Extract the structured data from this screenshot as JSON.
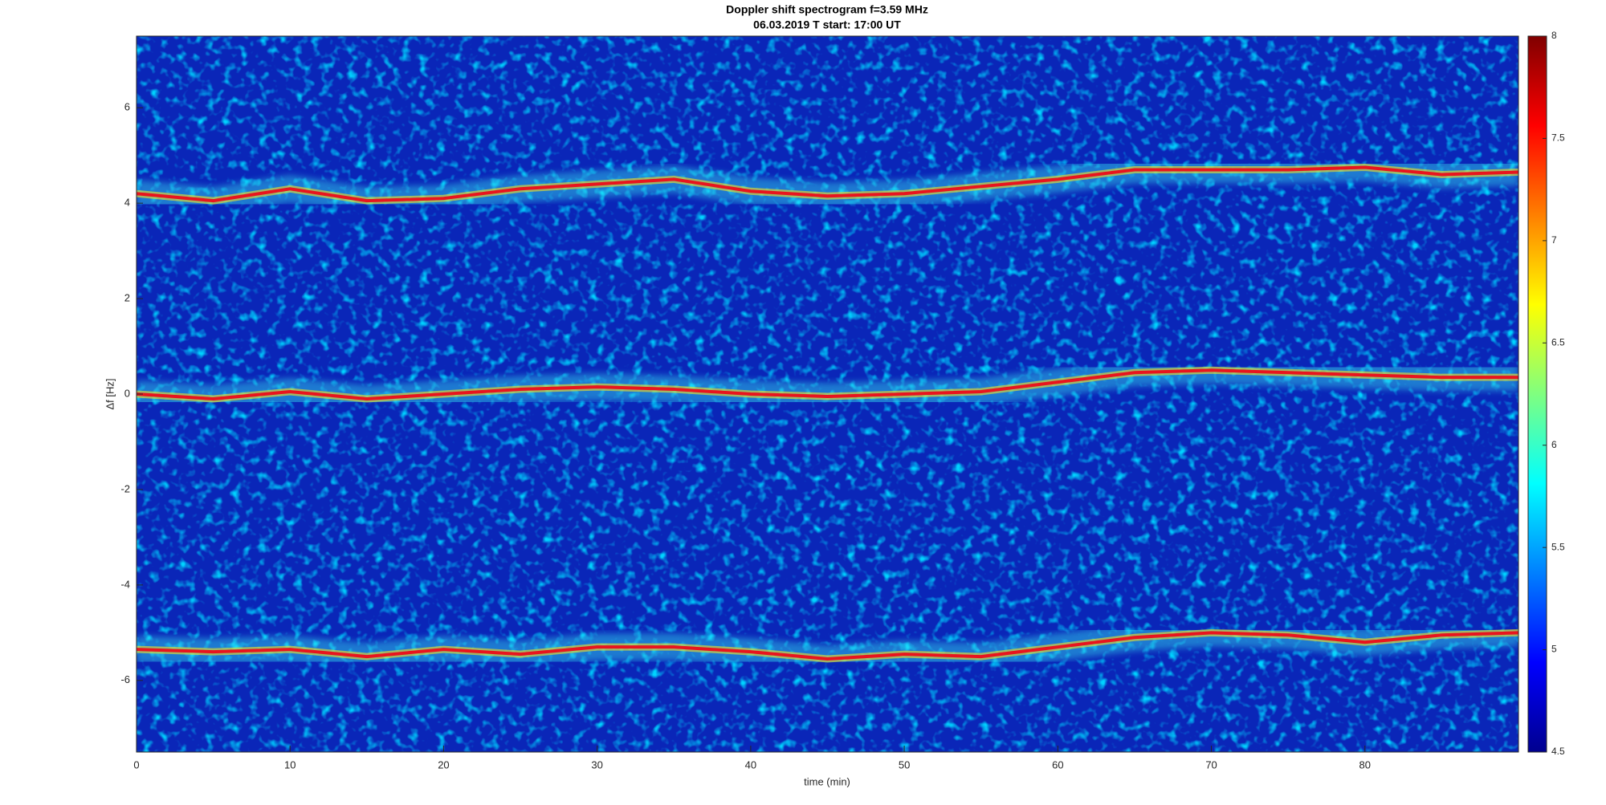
{
  "chart_data": {
    "type": "spectrogram",
    "title": "Doppler shift spectrogram f=3.59 MHz",
    "subtitle": "06.03.2019   T start: 17:00 UT",
    "xlabel": "time (min)",
    "ylabel": "Δf [Hz]",
    "x": [
      0,
      5,
      10,
      15,
      20,
      25,
      30,
      35,
      40,
      45,
      50,
      55,
      60,
      65,
      70,
      75,
      80,
      85,
      90
    ],
    "series": [
      {
        "values": [
          4.2,
          4.05,
          4.3,
          4.05,
          4.1,
          4.3,
          4.4,
          4.5,
          4.25,
          4.15,
          4.2,
          4.35,
          4.5,
          4.7,
          4.7,
          4.7,
          4.75,
          4.6,
          4.65
        ]
      },
      {
        "values": [
          0,
          -0.1,
          0.05,
          -0.1,
          0,
          0.1,
          0.15,
          0.1,
          0,
          -0.05,
          0,
          0.05,
          0.25,
          0.45,
          0.5,
          0.45,
          0.4,
          0.35,
          0.35
        ]
      },
      {
        "values": [
          -5.35,
          -5.4,
          -5.35,
          -5.5,
          -5.35,
          -5.45,
          -5.3,
          -5.3,
          -5.4,
          -5.55,
          -5.45,
          -5.5,
          -5.3,
          -5.1,
          -5.0,
          -5.05,
          -5.2,
          -5.05,
          -5.0
        ]
      }
    ],
    "color": "#e8141e",
    "xlim": [
      0,
      90
    ],
    "xticks": [
      0,
      10,
      20,
      30,
      40,
      50,
      60,
      70,
      80
    ],
    "ylim": [
      -7.5,
      7.5
    ],
    "yticks": [
      -6,
      -4,
      -2,
      0,
      2,
      4,
      6
    ],
    "colormap": "jet",
    "colorbar": {
      "lim": [
        4.5,
        8
      ],
      "ticks": [
        4.5,
        5,
        5.5,
        6,
        6.5,
        7,
        7.5,
        8
      ]
    }
  }
}
